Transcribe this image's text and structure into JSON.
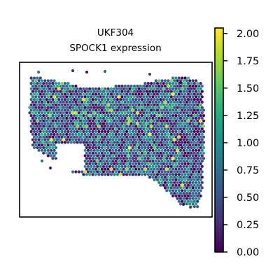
{
  "chart_data": {
    "type": "scatter",
    "title_lines": [
      "UKF304",
      "SPOCK1 expression"
    ],
    "xlabel": "",
    "ylabel": "",
    "colormap": "viridis",
    "color_range": [
      0.0,
      2.05
    ],
    "colorbar": {
      "ticks": [
        2.0,
        1.75,
        1.5,
        1.25,
        1.0,
        0.75,
        0.5,
        0.25,
        0.0
      ],
      "tick_labels": [
        "2.00",
        "1.75",
        "1.50",
        "1.25",
        "1.00",
        "0.75",
        "0.50",
        "0.25",
        "0.00"
      ]
    },
    "grid": false,
    "legend": "none",
    "dominant_value": 0.55,
    "spot_count_note": "dense hexagonal grid of spots, values approx 0-2"
  }
}
